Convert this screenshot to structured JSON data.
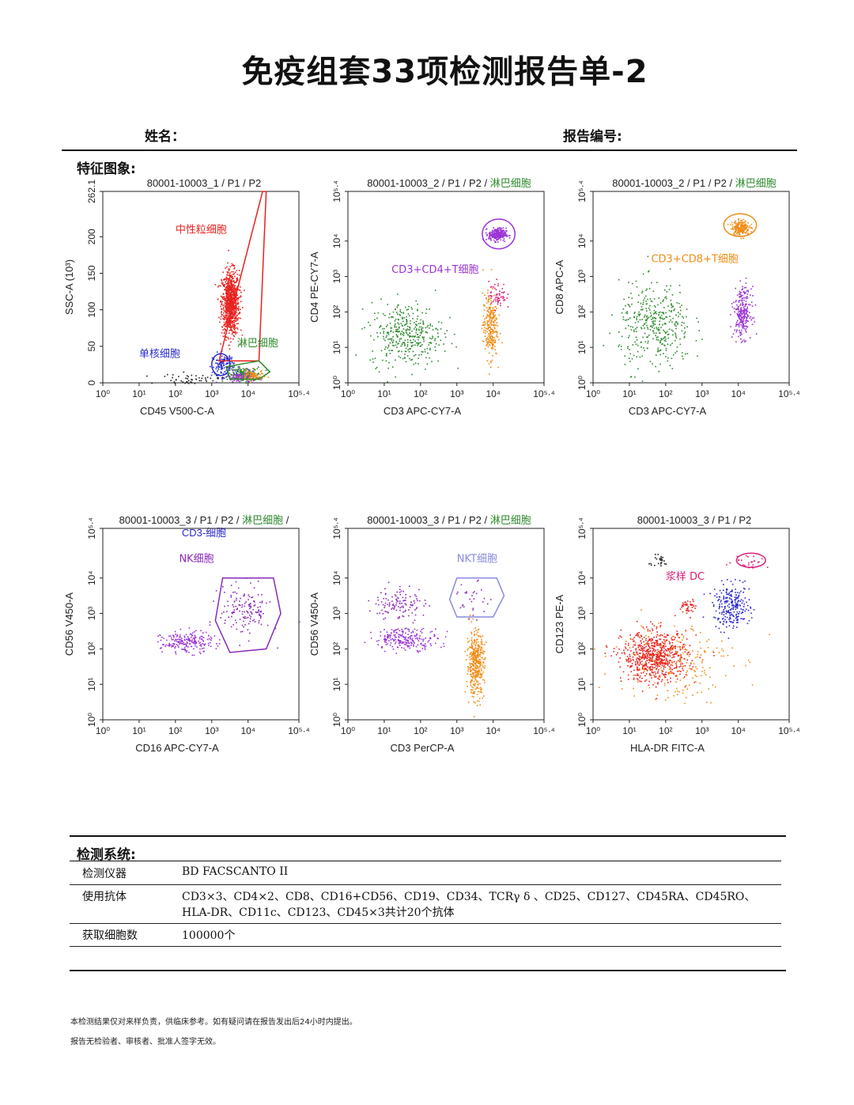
{
  "header": {
    "title": "免疫组套33项检测报告单-2",
    "name_label": "姓名：",
    "report_no_label": "报告编号:"
  },
  "features_label": "特征图象:",
  "colors": {
    "red": "#e8221e",
    "green": "#2d8a2d",
    "purple": "#9b33d6",
    "orange": "#f08c14",
    "blue": "#2a2ad0",
    "magenta": "#d81e78",
    "violet": "#8a2ab8"
  },
  "chart_data": [
    {
      "type": "scatter",
      "title_parts": [
        {
          "text": "80001-10003_1 / P1 / P2",
          "color": "#222"
        }
      ],
      "xlabel": "CD45  V500-C-A",
      "ylabel": "SSC-A  (10³)",
      "x_scale": "log",
      "xlim": [
        0,
        5.4
      ],
      "x_ticks": [
        "10⁰",
        "10¹",
        "10²",
        "10³",
        "10⁴",
        "10⁵·⁴"
      ],
      "y_scale": "linear",
      "ylim": [
        0,
        262.1
      ],
      "y_ticks": [
        "0",
        "50",
        "100",
        "150",
        "200",
        "262.1"
      ],
      "populations": [
        {
          "label": "中性粒细胞",
          "color": "#e8221e",
          "center": [
            3.5,
            110
          ],
          "spread": [
            0.12,
            22
          ],
          "count": 900
        },
        {
          "label": "淋巴细胞",
          "color": "#2d8a2d",
          "center": [
            3.9,
            12
          ],
          "spread": [
            0.22,
            5
          ],
          "count": 180
        },
        {
          "label": "单核细胞",
          "color": "#2a2ad0",
          "center": [
            3.3,
            25
          ],
          "spread": [
            0.15,
            8
          ],
          "count": 120
        },
        {
          "label": "",
          "color": "#9b33d6",
          "center": [
            3.8,
            8
          ],
          "spread": [
            0.2,
            4
          ],
          "count": 100
        },
        {
          "label": "",
          "color": "#f08c14",
          "center": [
            4.1,
            10
          ],
          "spread": [
            0.15,
            4
          ],
          "count": 80
        },
        {
          "label": "",
          "color": "#222222",
          "center": [
            2.4,
            5
          ],
          "spread": [
            0.4,
            4
          ],
          "count": 60
        }
      ],
      "annotations": [
        {
          "text": "中性粒细胞",
          "color": "#e8221e",
          "x": 2.0,
          "y": 205
        },
        {
          "text": "单核细胞",
          "color": "#2a2ad0",
          "x": 1.0,
          "y": 35
        },
        {
          "text": "淋巴细胞",
          "color": "#2d8a2d",
          "x": 3.7,
          "y": 50
        }
      ]
    },
    {
      "type": "scatter",
      "title_parts": [
        {
          "text": "80001-10003_2 / P1 / P2 / ",
          "color": "#222"
        },
        {
          "text": "淋巴细胞",
          "color": "#2d8a2d"
        }
      ],
      "xlabel": "CD3  APC-CY7-A",
      "ylabel": "CD4  PE-CY7-A",
      "x_scale": "log",
      "xlim": [
        0,
        5.4
      ],
      "x_ticks": [
        "10⁰",
        "10¹",
        "10²",
        "10³",
        "10⁴",
        "10⁵·⁴"
      ],
      "y_scale": "log",
      "ylim": [
        0,
        5.4
      ],
      "y_ticks": [
        "10⁰",
        "10¹",
        "10²",
        "10³",
        "10⁴",
        "10⁵·⁴"
      ],
      "populations": [
        {
          "label": "CD3+CD4+T细胞",
          "color": "#9b33d6",
          "center": [
            4.1,
            4.2
          ],
          "spread": [
            0.12,
            0.09
          ],
          "count": 260
        },
        {
          "label": "",
          "color": "#2d8a2d",
          "center": [
            1.6,
            1.4
          ],
          "spread": [
            0.5,
            0.45
          ],
          "count": 380
        },
        {
          "label": "",
          "color": "#f08c14",
          "center": [
            3.9,
            1.6
          ],
          "spread": [
            0.1,
            0.45
          ],
          "count": 260
        },
        {
          "label": "",
          "color": "#d81e78",
          "center": [
            4.1,
            2.5
          ],
          "spread": [
            0.12,
            0.2
          ],
          "count": 60
        }
      ],
      "annotations": [
        {
          "text": "CD3+CD4+T细胞",
          "color": "#9b33d6",
          "x": 1.2,
          "y": 3.1
        }
      ]
    },
    {
      "type": "scatter",
      "title_parts": [
        {
          "text": "80001-10003_2 / P1 / P2 / ",
          "color": "#222"
        },
        {
          "text": "淋巴细胞",
          "color": "#2d8a2d"
        }
      ],
      "xlabel": "CD3  APC-CY7-A",
      "ylabel": "CD8  APC-A",
      "x_scale": "log",
      "xlim": [
        0,
        5.4
      ],
      "x_ticks": [
        "10⁰",
        "10¹",
        "10²",
        "10³",
        "10⁴",
        "10⁵·⁴"
      ],
      "y_scale": "log",
      "ylim": [
        0,
        5.4
      ],
      "y_ticks": [
        "10⁰",
        "10¹",
        "10²",
        "10³",
        "10⁴",
        "10⁵·⁴"
      ],
      "populations": [
        {
          "label": "CD3+CD8+T细胞",
          "color": "#f08c14",
          "center": [
            4.05,
            4.4
          ],
          "spread": [
            0.12,
            0.1
          ],
          "count": 200
        },
        {
          "label": "",
          "color": "#2d8a2d",
          "center": [
            1.7,
            1.6
          ],
          "spread": [
            0.5,
            0.6
          ],
          "count": 380
        },
        {
          "label": "",
          "color": "#9b33d6",
          "center": [
            4.1,
            2.0
          ],
          "spread": [
            0.12,
            0.35
          ],
          "count": 260
        }
      ],
      "annotations": [
        {
          "text": "CD3+CD8+T细胞",
          "color": "#f08c14",
          "x": 1.6,
          "y": 3.4
        }
      ]
    },
    {
      "type": "scatter",
      "title_parts": [
        {
          "text": "80001-10003_3 / P1 / P2 / ",
          "color": "#222"
        },
        {
          "text": "淋巴细胞",
          "color": "#2d8a2d"
        },
        {
          "text": " /",
          "color": "#222"
        }
      ],
      "subtitle_parts": [
        {
          "text": "CD3-细胞",
          "color": "#2a2ad0"
        }
      ],
      "xlabel": "CD16  APC-CY7-A",
      "ylabel": "CD56  V450-A",
      "x_scale": "log",
      "xlim": [
        0,
        5.4
      ],
      "x_ticks": [
        "10⁰",
        "10¹",
        "10²",
        "10³",
        "10⁴",
        "10⁵·⁴"
      ],
      "y_scale": "log",
      "ylim": [
        0,
        5.4
      ],
      "y_ticks": [
        "10⁰",
        "10¹",
        "10²",
        "10³",
        "10⁴",
        "10⁵·⁴"
      ],
      "populations": [
        {
          "label": "NK细胞",
          "color": "#8a2ab8",
          "center": [
            3.9,
            3.1
          ],
          "spread": [
            0.35,
            0.35
          ],
          "count": 150
        },
        {
          "label": "",
          "color": "#9b33d6",
          "center": [
            2.3,
            2.2
          ],
          "spread": [
            0.35,
            0.15
          ],
          "count": 200
        }
      ],
      "annotations": [
        {
          "text": "NK细胞",
          "color": "#8a2ab8",
          "x": 2.1,
          "y": 4.45
        }
      ]
    },
    {
      "type": "scatter",
      "title_parts": [
        {
          "text": "80001-10003_3 / P1 / P2 / ",
          "color": "#222"
        },
        {
          "text": "淋巴细胞",
          "color": "#2d8a2d"
        }
      ],
      "xlabel": "CD3  PerCP-A",
      "ylabel": "CD56  V450-A",
      "x_scale": "log",
      "xlim": [
        0,
        5.4
      ],
      "x_ticks": [
        "10⁰",
        "10¹",
        "10²",
        "10³",
        "10⁴",
        "10⁵·⁴"
      ],
      "y_scale": "log",
      "ylim": [
        0,
        5.4
      ],
      "y_ticks": [
        "10⁰",
        "10¹",
        "10²",
        "10³",
        "10⁴",
        "10⁵·⁴"
      ],
      "populations": [
        {
          "label": "NKT细胞",
          "color": "#8a2ab8",
          "center": [
            3.4,
            3.4
          ],
          "spread": [
            0.25,
            0.25
          ],
          "count": 30
        },
        {
          "label": "",
          "color": "#9b33d6",
          "center": [
            1.6,
            2.3
          ],
          "spread": [
            0.45,
            0.15
          ],
          "count": 220
        },
        {
          "label": "",
          "color": "#8a2ab8",
          "center": [
            1.4,
            3.3
          ],
          "spread": [
            0.35,
            0.25
          ],
          "count": 120
        },
        {
          "label": "",
          "color": "#f08c14",
          "center": [
            3.5,
            1.6
          ],
          "spread": [
            0.12,
            0.45
          ],
          "count": 400
        }
      ],
      "annotations": [
        {
          "text": "NKT细胞",
          "color": "#8a8ae0",
          "x": 3.0,
          "y": 4.45
        }
      ]
    },
    {
      "type": "scatter",
      "title_parts": [
        {
          "text": "80001-10003_3 / P1 / P2",
          "color": "#222"
        }
      ],
      "xlabel": "HLA-DR  FITC-A",
      "ylabel": "CD123  PE-A",
      "x_scale": "log",
      "xlim": [
        0,
        5.4
      ],
      "x_ticks": [
        "10⁰",
        "10¹",
        "10²",
        "10³",
        "10⁴",
        "10⁵·⁴"
      ],
      "y_scale": "log",
      "ylim": [
        0,
        5.4
      ],
      "y_ticks": [
        "10⁰",
        "10¹",
        "10²",
        "10³",
        "10⁴",
        "10⁵·⁴"
      ],
      "populations": [
        {
          "label": "浆样 DC",
          "color": "#d81e78",
          "center": [
            4.3,
            4.5
          ],
          "spread": [
            0.25,
            0.1
          ],
          "count": 25
        },
        {
          "label": "",
          "color": "#e8221e",
          "center": [
            1.7,
            1.8
          ],
          "spread": [
            0.45,
            0.35
          ],
          "count": 700
        },
        {
          "label": "",
          "color": "#2a2ad0",
          "center": [
            3.8,
            3.2
          ],
          "spread": [
            0.25,
            0.3
          ],
          "count": 250
        },
        {
          "label": "",
          "color": "#f08c14",
          "center": [
            2.2,
            1.7
          ],
          "spread": [
            0.8,
            0.6
          ],
          "count": 200
        },
        {
          "label": "",
          "color": "#222222",
          "center": [
            1.8,
            4.5
          ],
          "spread": [
            0.15,
            0.08
          ],
          "count": 25
        },
        {
          "label": "",
          "color": "#e8221e",
          "center": [
            2.6,
            3.2
          ],
          "spread": [
            0.1,
            0.12
          ],
          "count": 40
        }
      ],
      "annotations": [
        {
          "text": "浆样 DC",
          "color": "#d81e78",
          "x": 2.0,
          "y": 3.95
        }
      ]
    }
  ],
  "detection_system": {
    "label": "检测系统:",
    "rows": [
      {
        "key": "检测仪器",
        "value_lines": [
          "BD FACSCANTO II"
        ]
      },
      {
        "key": "使用抗体",
        "value_lines": [
          "CD3×3、CD4×2、CD8、CD16+CD56、CD19、CD34、TCRγ δ 、CD25、CD127、CD45RA、CD45RO、",
          "HLA-DR、CD11c、CD123、CD45×3共计20个抗体"
        ]
      },
      {
        "key": "获取细胞数",
        "value_lines": [
          "100000个"
        ]
      }
    ]
  },
  "footer": {
    "line1": "本检测结果仅对来样负责，供临床参考。如有疑问请在报告发出后24小时内提出。",
    "line2": "报告无检验者、审核者、批准人签字无效。"
  }
}
